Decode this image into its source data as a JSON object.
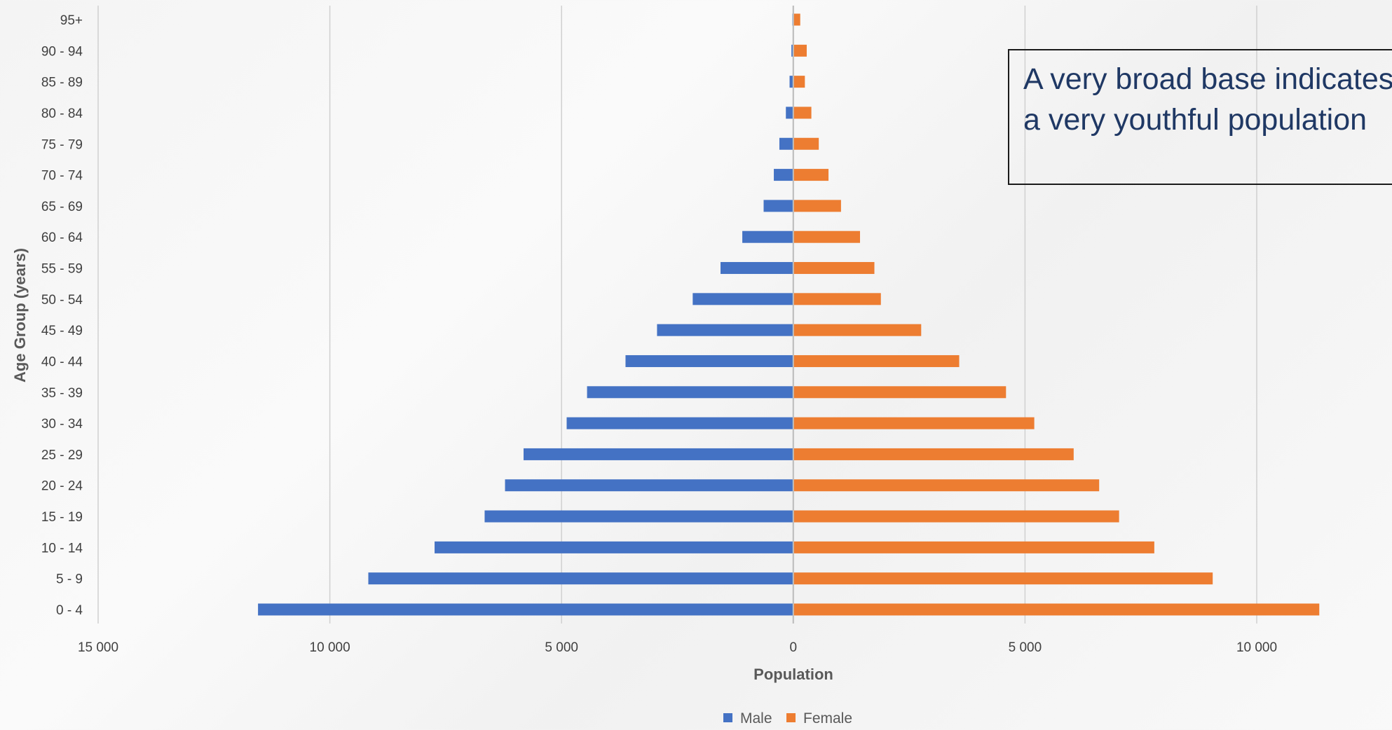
{
  "chart_data": {
    "type": "bar",
    "orientation": "horizontal",
    "categories": [
      "0 - 4",
      "5 - 9",
      "10 - 14",
      "15 - 19",
      "20 - 24",
      "25 - 29",
      "30 - 34",
      "35 - 39",
      "40 - 44",
      "45 - 49",
      "50 - 54",
      "55 - 59",
      "60 - 64",
      "65 - 69",
      "70 - 74",
      "75 - 79",
      "80 - 84",
      "85 - 89",
      "90 - 94",
      "95+"
    ],
    "series": [
      {
        "name": "Male",
        "color": "#4472C4",
        "values": [
          11550,
          9170,
          7740,
          6660,
          6220,
          5820,
          4890,
          4450,
          3620,
          2940,
          2170,
          1570,
          1100,
          640,
          420,
          300,
          160,
          80,
          40,
          20
        ]
      },
      {
        "name": "Female",
        "color": "#ED7D31",
        "values": [
          11350,
          9050,
          7790,
          7030,
          6600,
          6050,
          5200,
          4590,
          3580,
          2760,
          1890,
          1750,
          1440,
          1030,
          760,
          550,
          390,
          250,
          290,
          150
        ]
      }
    ],
    "xlabel": "Population",
    "ylabel": "Age Group (years)",
    "xlim": [
      -15000,
      10000
    ],
    "xticks": [
      -15000,
      -10000,
      -5000,
      0,
      5000,
      10000
    ],
    "xtick_labels": [
      "15 000",
      "10 000",
      "5 000",
      "0",
      "5 000",
      "10 000"
    ],
    "grid": true,
    "legend_position": "bottom"
  },
  "annotation": {
    "text": "A very broad base indicates a very youthful population"
  }
}
